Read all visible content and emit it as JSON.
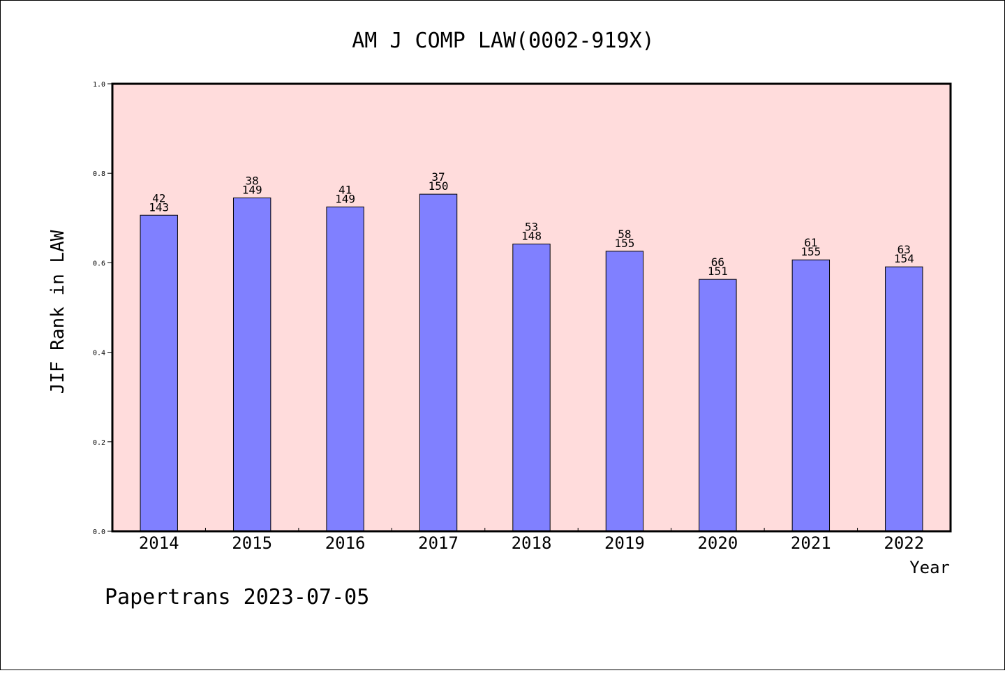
{
  "chart_data": {
    "type": "bar",
    "title": "AM J COMP LAW(0002-919X)",
    "xlabel": "Year",
    "ylabel": "JIF Rank in LAW",
    "ylim": [
      0,
      1.0
    ],
    "yticks": [
      "0.0",
      "0.2",
      "0.4",
      "0.6",
      "0.8",
      "1.0"
    ],
    "categories": [
      "2014",
      "2015",
      "2016",
      "2017",
      "2018",
      "2019",
      "2020",
      "2021",
      "2022"
    ],
    "values": [
      0.7063,
      0.745,
      0.7248,
      0.7533,
      0.6419,
      0.6258,
      0.5629,
      0.6065,
      0.5909
    ],
    "rank_labels": [
      "42",
      "38",
      "41",
      "37",
      "53",
      "58",
      "66",
      "61",
      "63"
    ],
    "total_labels": [
      "143",
      "149",
      "149",
      "150",
      "148",
      "155",
      "151",
      "155",
      "154"
    ],
    "colors": {
      "plot_background": "#ffdcdc",
      "bar_fill": "#8080ff",
      "bar_stroke": "#000000"
    },
    "grid": false,
    "legend": "none"
  },
  "footer": {
    "text": "Papertrans 2023-07-05"
  }
}
